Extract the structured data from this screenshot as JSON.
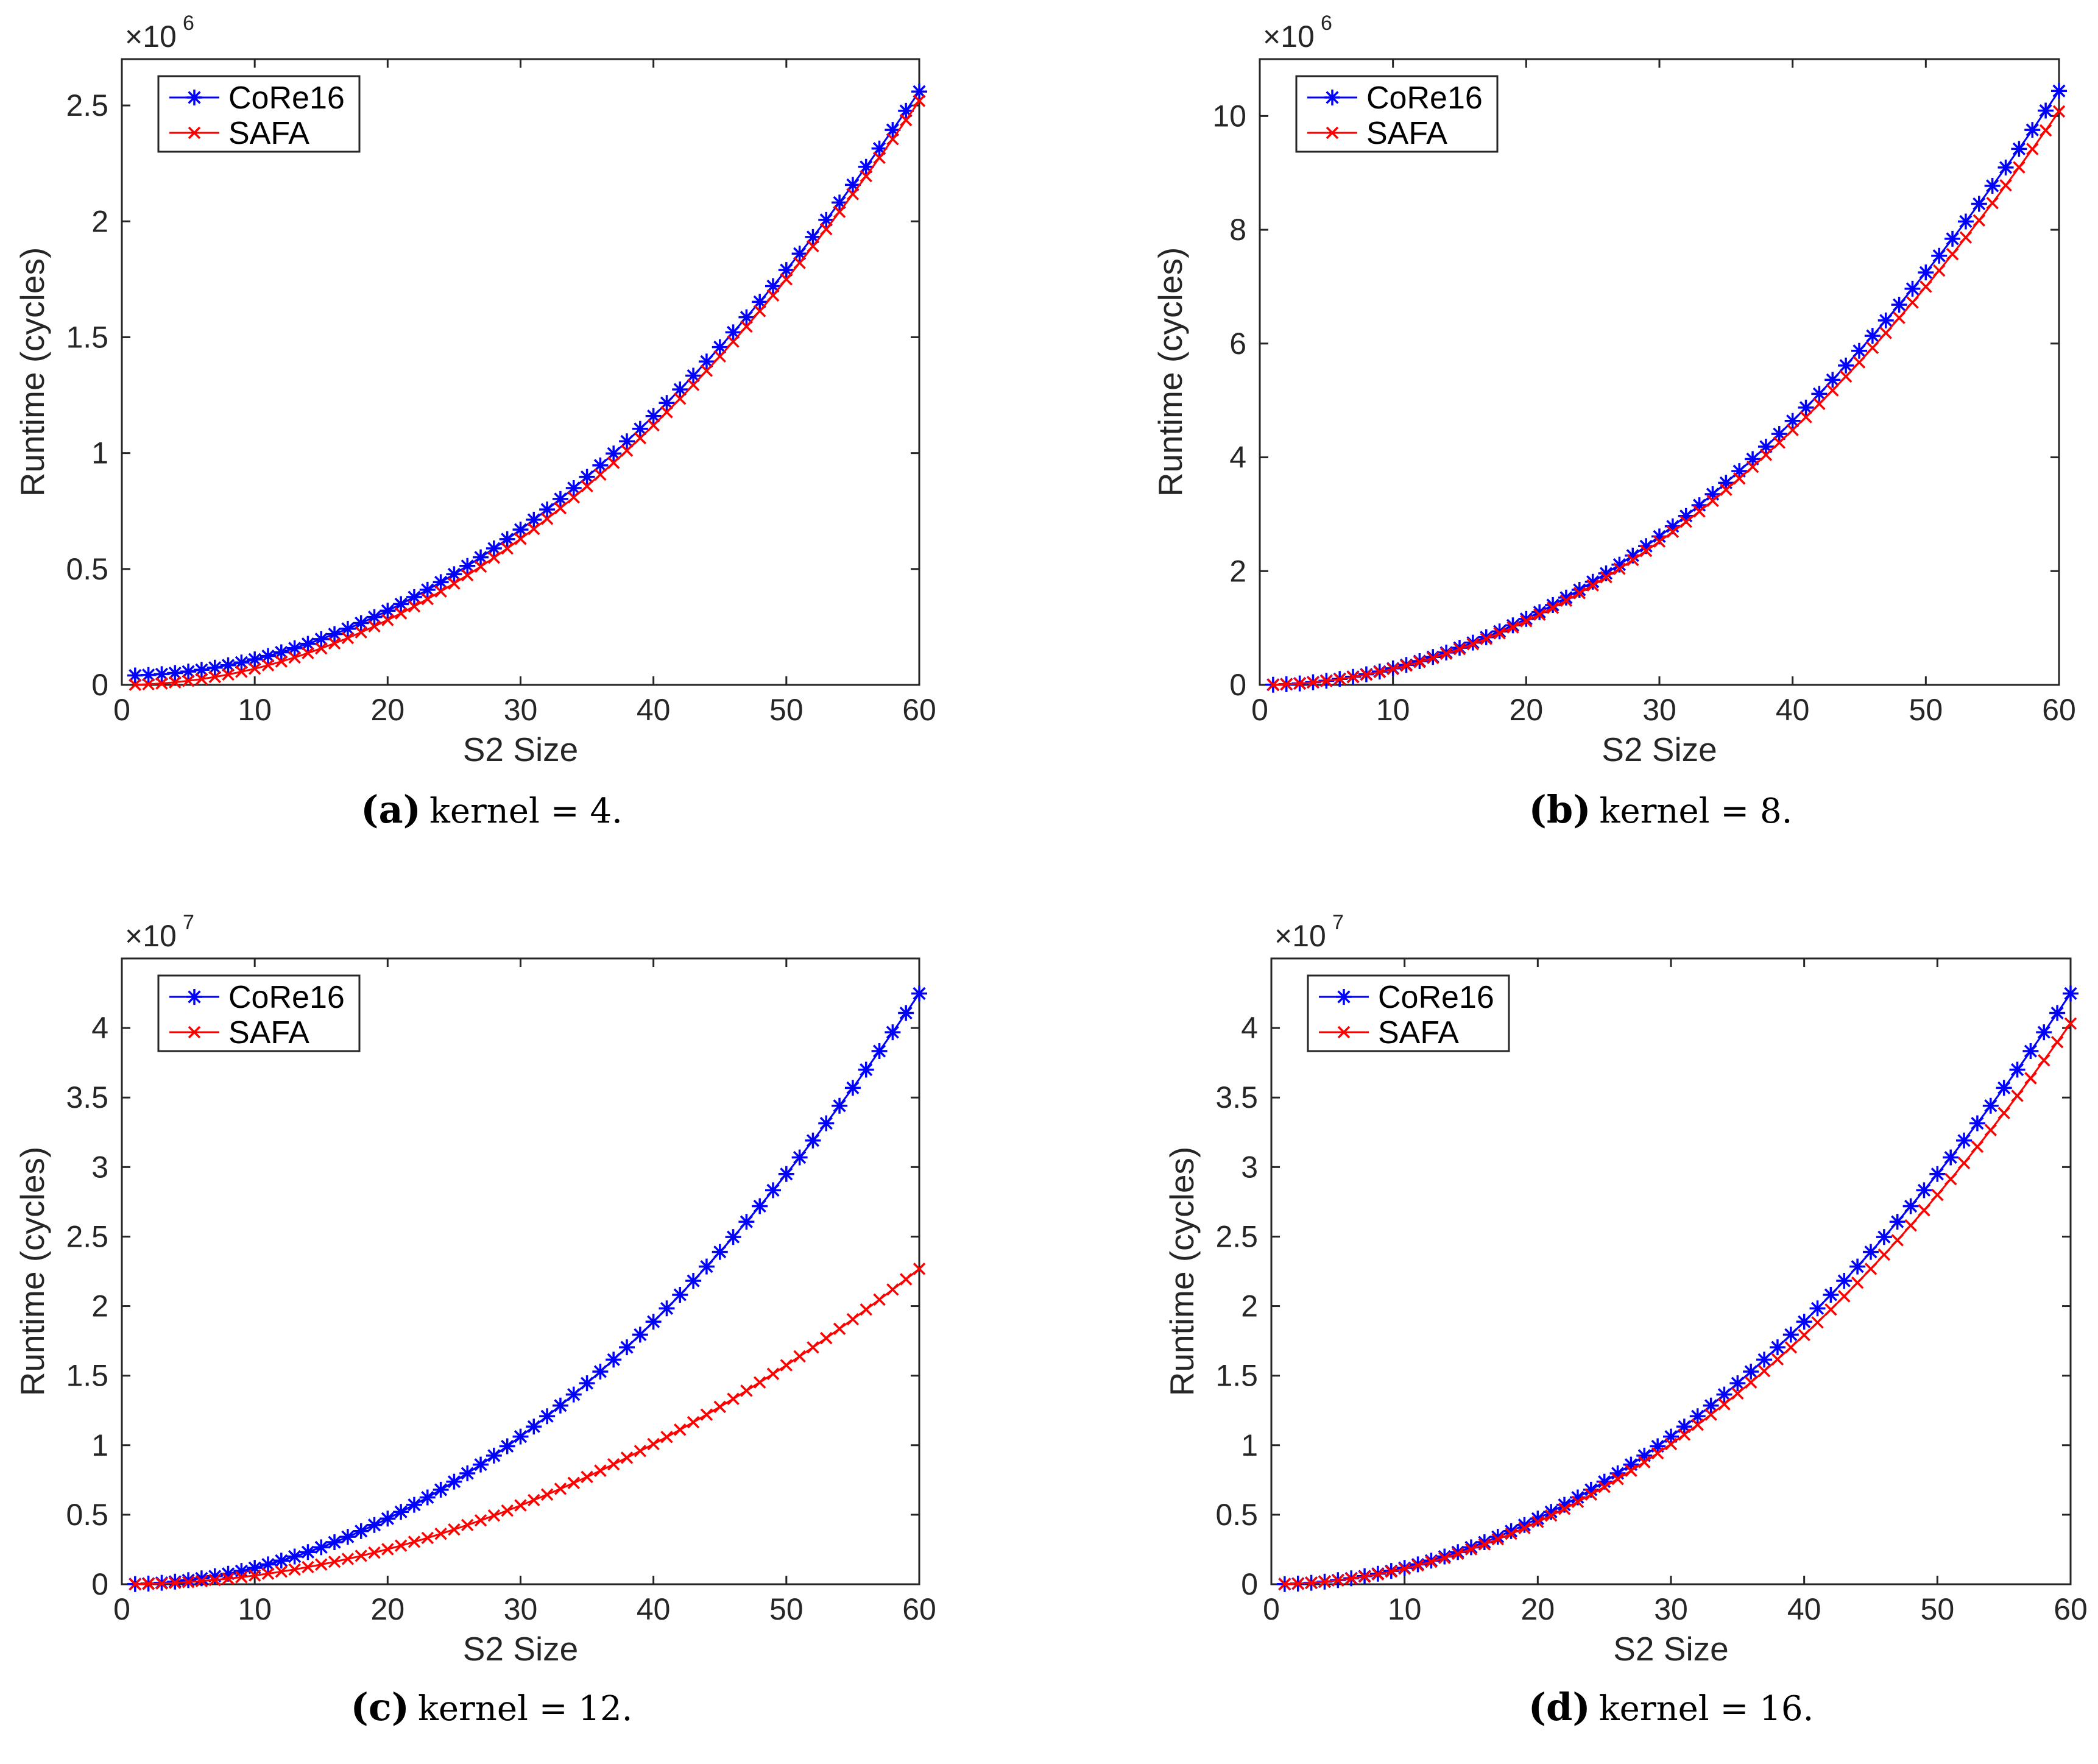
{
  "chart_data": [
    {
      "type": "line",
      "panel_label": "(a)",
      "caption": "kernel = 4.",
      "xlabel": "S2 Size",
      "ylabel": "Runtime (cycles)",
      "xlim": [
        0,
        60
      ],
      "ylim": [
        0,
        2.7
      ],
      "x_ticks": [
        0,
        10,
        20,
        30,
        40,
        50,
        60
      ],
      "y_ticks": [
        0,
        0.5,
        1,
        1.5,
        2,
        2.5
      ],
      "y_tick_labels": [
        "0",
        "0.5",
        "1",
        "1.5",
        "2",
        "2.5"
      ],
      "multiplier": "×10",
      "multiplier_exp": "6",
      "legend": [
        "CoRe16",
        "SAFA"
      ],
      "legend_position": "top-left",
      "x_range": [
        1,
        60
      ],
      "series": [
        {
          "name": "CoRe16",
          "color": "#0000ff",
          "marker": "star",
          "model": {
            "a": 0.0007,
            "p": 2,
            "b": 0.04
          }
        },
        {
          "name": "SAFA",
          "color": "#ff0000",
          "marker": "x",
          "model": {
            "a": 0.0007,
            "p": 2,
            "b": 0.0
          }
        }
      ]
    },
    {
      "type": "line",
      "panel_label": "(b)",
      "caption": "kernel = 8.",
      "xlabel": "S2 Size",
      "ylabel": "Runtime (cycles)",
      "xlim": [
        0,
        60
      ],
      "ylim": [
        0,
        11
      ],
      "x_ticks": [
        0,
        10,
        20,
        30,
        40,
        50,
        60
      ],
      "y_ticks": [
        0,
        2,
        4,
        6,
        8,
        10
      ],
      "y_tick_labels": [
        "0",
        "2",
        "4",
        "6",
        "8",
        "10"
      ],
      "multiplier": "×10",
      "multiplier_exp": "6",
      "legend": [
        "CoRe16",
        "SAFA"
      ],
      "legend_position": "top-left",
      "x_range": [
        1,
        60
      ],
      "series": [
        {
          "name": "CoRe16",
          "color": "#0000ff",
          "marker": "star",
          "model": {
            "a": 0.0029,
            "p": 2,
            "b": 0.0
          }
        },
        {
          "name": "SAFA",
          "color": "#ff0000",
          "marker": "x",
          "model": {
            "a": 0.0028,
            "p": 2,
            "b": 0.0
          }
        }
      ]
    },
    {
      "type": "line",
      "panel_label": "(c)",
      "caption": "kernel = 12.",
      "xlabel": "S2 Size",
      "ylabel": "Runtime (cycles)",
      "xlim": [
        0,
        60
      ],
      "ylim": [
        0,
        4.5
      ],
      "x_ticks": [
        0,
        10,
        20,
        30,
        40,
        50,
        60
      ],
      "y_ticks": [
        0,
        0.5,
        1,
        1.5,
        2,
        2.5,
        3,
        3.5,
        4
      ],
      "y_tick_labels": [
        "0",
        "0.5",
        "1",
        "1.5",
        "2",
        "2.5",
        "3",
        "3.5",
        "4"
      ],
      "multiplier": "×10",
      "multiplier_exp": "7",
      "legend": [
        "CoRe16",
        "SAFA"
      ],
      "legend_position": "top-left",
      "x_range": [
        1,
        60
      ],
      "series": [
        {
          "name": "CoRe16",
          "color": "#0000ff",
          "marker": "star",
          "model": {
            "a": 0.00118,
            "p": 2,
            "b": 0.0
          }
        },
        {
          "name": "SAFA",
          "color": "#ff0000",
          "marker": "x",
          "model": {
            "a": 0.00063,
            "p": 2,
            "b": 0.0
          }
        }
      ]
    },
    {
      "type": "line",
      "panel_label": "(d)",
      "caption": "kernel = 16.",
      "xlabel": "S2 Size",
      "ylabel": "Runtime (cycles)",
      "xlim": [
        0,
        60
      ],
      "ylim": [
        0,
        4.5
      ],
      "x_ticks": [
        0,
        10,
        20,
        30,
        40,
        50,
        60
      ],
      "y_ticks": [
        0,
        0.5,
        1,
        1.5,
        2,
        2.5,
        3,
        3.5,
        4
      ],
      "y_tick_labels": [
        "0",
        "0.5",
        "1",
        "1.5",
        "2",
        "2.5",
        "3",
        "3.5",
        "4"
      ],
      "multiplier": "×10",
      "multiplier_exp": "7",
      "legend": [
        "CoRe16",
        "SAFA"
      ],
      "legend_position": "top-left",
      "x_range": [
        1,
        60
      ],
      "series": [
        {
          "name": "CoRe16",
          "color": "#0000ff",
          "marker": "star",
          "model": {
            "a": 0.00118,
            "p": 2,
            "b": 0.0
          }
        },
        {
          "name": "SAFA",
          "color": "#ff0000",
          "marker": "x",
          "model": {
            "a": 0.00112,
            "p": 2,
            "b": 0.0
          }
        }
      ]
    }
  ]
}
